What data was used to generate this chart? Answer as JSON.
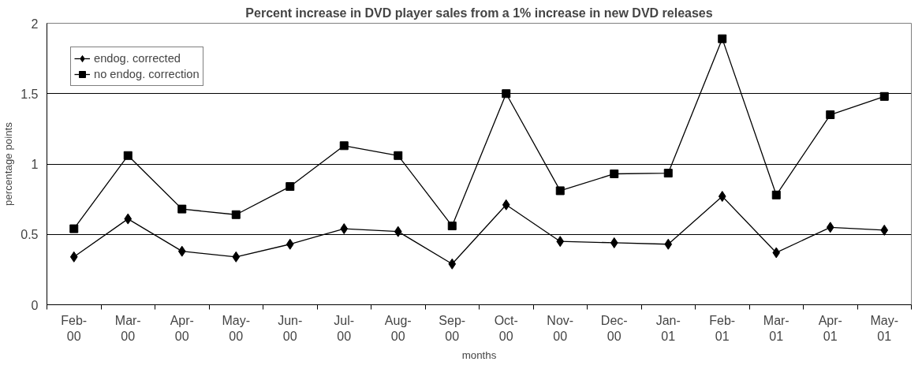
{
  "chart_data": {
    "type": "line",
    "title": "Percent increase in DVD player sales from a 1% increase in new DVD releases",
    "xlabel": "months",
    "ylabel": "percentage points",
    "categories": [
      "Feb-00",
      "Mar-00",
      "Apr-00",
      "May-00",
      "Jun-00",
      "Jul-00",
      "Aug-00",
      "Sep-00",
      "Oct-00",
      "Nov-00",
      "Dec-00",
      "Jan-01",
      "Feb-01",
      "Mar-01",
      "Apr-01",
      "May-01"
    ],
    "series": [
      {
        "name": "endog. corrected",
        "color": "#000000",
        "marker": "diamond",
        "values": [
          0.34,
          0.61,
          0.38,
          0.34,
          0.43,
          0.54,
          0.52,
          0.29,
          0.71,
          0.45,
          0.44,
          0.43,
          0.77,
          0.37,
          0.55,
          0.53
        ]
      },
      {
        "name": "no endog. correction",
        "color": "#000000",
        "marker": "square",
        "values": [
          0.54,
          1.06,
          0.68,
          0.64,
          0.84,
          1.13,
          1.06,
          0.56,
          1.5,
          0.81,
          0.93,
          0.935,
          1.89,
          0.78,
          1.35,
          1.48
        ]
      }
    ],
    "ylim": [
      0,
      2
    ],
    "yticks": [
      0,
      0.5,
      1,
      1.5,
      2
    ],
    "grid": "y",
    "legend": "top left",
    "line_style": "solid"
  }
}
